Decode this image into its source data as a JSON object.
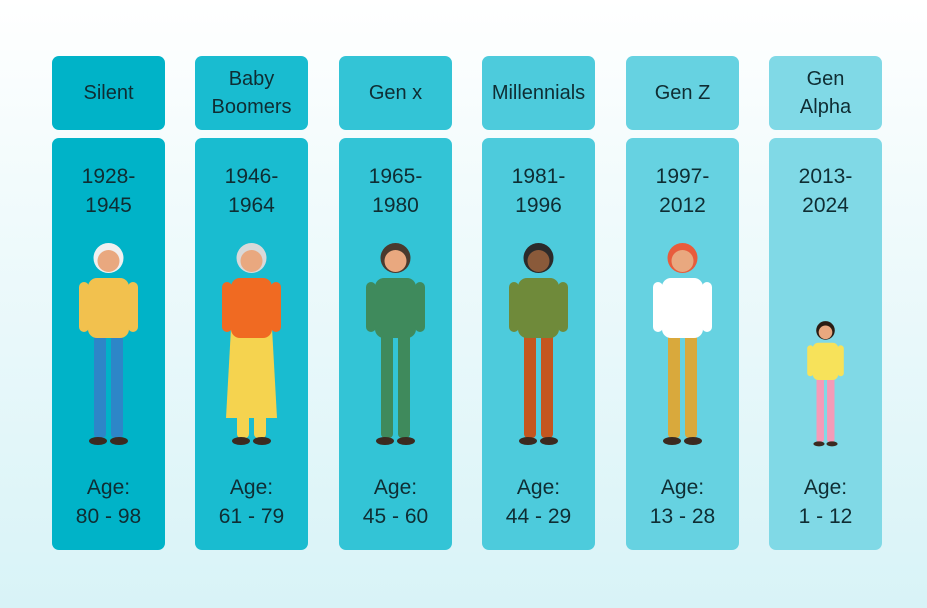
{
  "generations": [
    {
      "name": [
        "Silent"
      ],
      "years": [
        "1928-",
        "1945"
      ],
      "age": [
        "Age:",
        "80 - 98"
      ]
    },
    {
      "name": [
        "Baby",
        "Boomers"
      ],
      "years": [
        "1946-",
        "1964"
      ],
      "age": [
        "Age:",
        "61 - 79"
      ]
    },
    {
      "name": [
        "Gen x"
      ],
      "years": [
        "1965-",
        "1980"
      ],
      "age": [
        "Age:",
        "45 - 60"
      ]
    },
    {
      "name": [
        "Millennials"
      ],
      "years": [
        "1981-",
        "1996"
      ],
      "age": [
        "Age:",
        "44 - 29"
      ]
    },
    {
      "name": [
        "Gen Z"
      ],
      "years": [
        "1997-",
        "2012"
      ],
      "age": [
        "Age:",
        "13 - 28"
      ]
    },
    {
      "name": [
        "Gen",
        "Alpha"
      ],
      "years": [
        "2013-",
        "2024"
      ],
      "age": [
        "Age:",
        "1 - 12"
      ]
    }
  ]
}
